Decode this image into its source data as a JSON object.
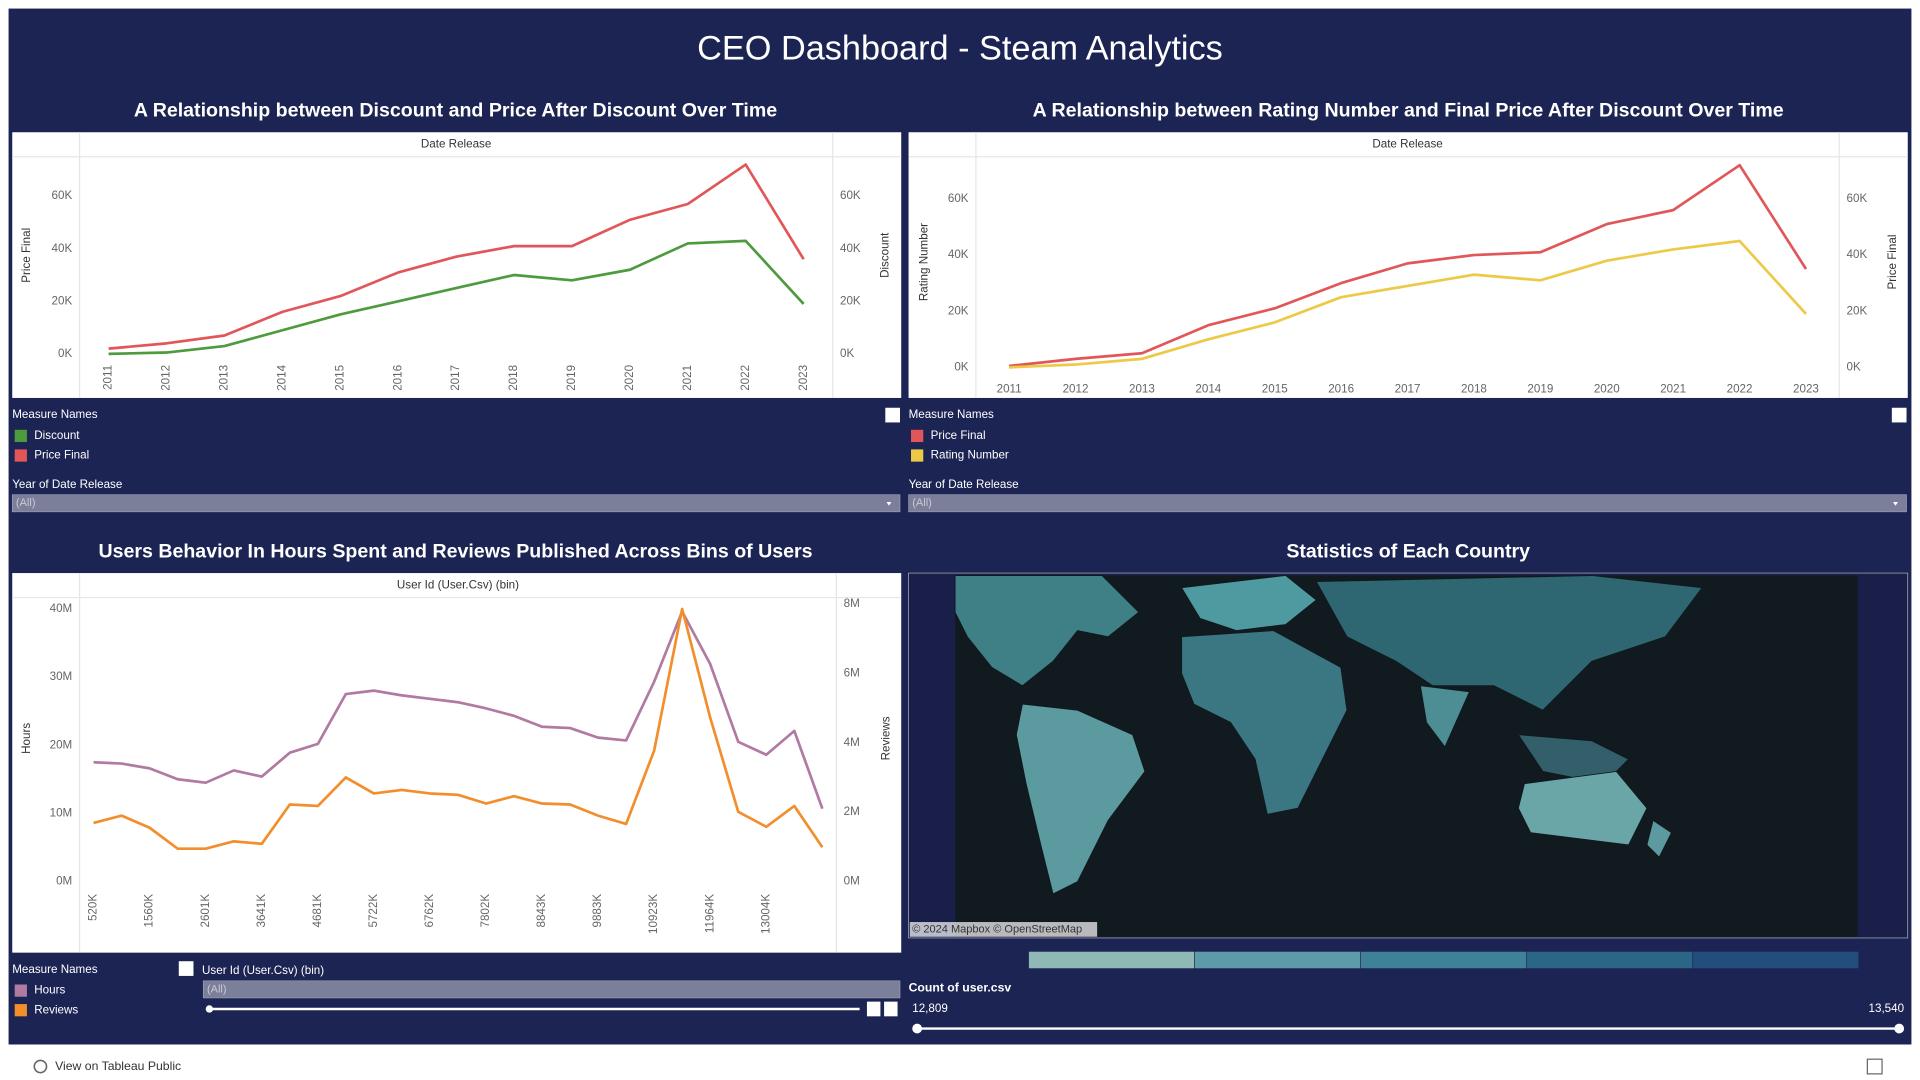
{
  "header": {
    "title": "CEO Dashboard - Steam Analytics"
  },
  "chart_data": [
    {
      "type": "line",
      "title": "A Relationship between Discount and Price After Discount Over Time",
      "x_label": "Date Release",
      "y_label": "Price Final",
      "y2_label": "Discount",
      "categories": [
        "2011",
        "2012",
        "2013",
        "2014",
        "2015",
        "2016",
        "2017",
        "2018",
        "2019",
        "2020",
        "2021",
        "2022",
        "2023"
      ],
      "series": [
        {
          "name": "Discount",
          "color": "#4e9a3e",
          "axis": "y2",
          "values": [
            0,
            500,
            3000,
            9000,
            15000,
            20000,
            25000,
            30000,
            28000,
            32000,
            42000,
            43000,
            19000
          ]
        },
        {
          "name": "Price Final",
          "color": "#e15759",
          "axis": "y",
          "values": [
            2000,
            4000,
            7000,
            16000,
            22000,
            31000,
            37000,
            41000,
            41000,
            51000,
            57000,
            72000,
            36000
          ]
        }
      ],
      "ylim": [
        0,
        75000
      ],
      "yticks": [
        {
          "value": 0,
          "label": "0K"
        },
        {
          "value": 20000,
          "label": "20K"
        },
        {
          "value": 40000,
          "label": "40K"
        },
        {
          "value": 60000,
          "label": "60K"
        }
      ],
      "y2lim": [
        0,
        75000
      ],
      "y2ticks": [
        {
          "value": 0,
          "label": "0K"
        },
        {
          "value": 20000,
          "label": "20K"
        },
        {
          "value": 40000,
          "label": "40K"
        },
        {
          "value": 60000,
          "label": "60K"
        }
      ],
      "legend_title": "Measure Names",
      "filter": {
        "label": "Year of Date Release",
        "value": "(All)"
      }
    },
    {
      "type": "line",
      "title": "A Relationship between Rating Number and Final Price After Discount Over Time",
      "x_label": "Date Release",
      "y_label": "Rating Number",
      "y2_label": "Price Final",
      "categories": [
        "2011",
        "2012",
        "2013",
        "2014",
        "2015",
        "2016",
        "2017",
        "2018",
        "2019",
        "2020",
        "2021",
        "2022",
        "2023"
      ],
      "series": [
        {
          "name": "Price Final",
          "color": "#e15759",
          "axis": "y2",
          "values": [
            500,
            3000,
            5000,
            15000,
            21000,
            30000,
            37000,
            40000,
            41000,
            51000,
            56000,
            72000,
            35000
          ]
        },
        {
          "name": "Rating Number",
          "color": "#edc948",
          "axis": "y",
          "values": [
            0,
            1000,
            3000,
            10000,
            16000,
            25000,
            29000,
            33000,
            31000,
            38000,
            42000,
            45000,
            19000
          ]
        }
      ],
      "ylim": [
        0,
        75000
      ],
      "yticks": [
        {
          "value": 0,
          "label": "0K"
        },
        {
          "value": 20000,
          "label": "20K"
        },
        {
          "value": 40000,
          "label": "40K"
        },
        {
          "value": 60000,
          "label": "60K"
        }
      ],
      "y2lim": [
        0,
        75000
      ],
      "y2ticks": [
        {
          "value": 0,
          "label": "0K"
        },
        {
          "value": 20000,
          "label": "20K"
        },
        {
          "value": 40000,
          "label": "40K"
        },
        {
          "value": 60000,
          "label": "60K"
        }
      ],
      "legend_title": "Measure Names",
      "filter": {
        "label": "Year of Date Release",
        "value": "(All)"
      }
    },
    {
      "type": "line",
      "title": "Users Behavior In Hours Spent and Reviews Published Across Bins of Users",
      "x_label": "User Id (User.Csv) (bin)",
      "y_label": "Hours",
      "y2_label": "Reviews",
      "categories": [
        "520K",
        null,
        "1560K",
        null,
        "2601K",
        null,
        "3641K",
        null,
        "4681K",
        null,
        "5722K",
        null,
        "6762K",
        null,
        "7802K",
        null,
        "8843K",
        null,
        "9883K",
        null,
        "10923K",
        null,
        "11964K",
        null,
        "13004K",
        null,
        null
      ],
      "series": [
        {
          "name": "Hours",
          "color": "#b07aa1",
          "axis": "y",
          "values": [
            17500000,
            17300000,
            16600000,
            15000000,
            14500000,
            16300000,
            15400000,
            18900000,
            20200000,
            27500000,
            28000000,
            27300000,
            26800000,
            26300000,
            25400000,
            24300000,
            22700000,
            22500000,
            21100000,
            20700000,
            29300000,
            39600000,
            31900000,
            20500000,
            18600000,
            22100000,
            10700000
          ]
        },
        {
          "name": "Reviews",
          "color": "#f28e2b",
          "axis": "y2",
          "values": [
            1690000,
            1900000,
            1550000,
            950000,
            950000,
            1160000,
            1090000,
            2220000,
            2180000,
            3000000,
            2540000,
            2640000,
            2540000,
            2500000,
            2250000,
            2460000,
            2250000,
            2220000,
            1900000,
            1660000,
            3770000,
            7850000,
            4720000,
            2010000,
            1580000,
            2180000,
            990000
          ]
        }
      ],
      "ylim": [
        0,
        42000000
      ],
      "yticks": [
        {
          "value": 0,
          "label": "0M"
        },
        {
          "value": 10000000,
          "label": "10M"
        },
        {
          "value": 20000000,
          "label": "20M"
        },
        {
          "value": 30000000,
          "label": "30M"
        },
        {
          "value": 40000000,
          "label": "40M"
        }
      ],
      "y2lim": [
        0,
        8250000
      ],
      "y2ticks": [
        {
          "value": 0,
          "label": "0M"
        },
        {
          "value": 2000000,
          "label": "2M"
        },
        {
          "value": 4000000,
          "label": "4M"
        },
        {
          "value": 6000000,
          "label": "6M"
        },
        {
          "value": 8000000,
          "label": "8M"
        }
      ],
      "legend_title": "Measure Names",
      "filter": {
        "label": "User Id (User.Csv) (bin)",
        "value": "(All)"
      }
    }
  ],
  "map": {
    "title": "Statistics of Each Country",
    "attribution": "© 2024 Mapbox © OpenStreetMap",
    "legend_title": "Count of user.csv",
    "legend_min": "12,809",
    "legend_max": "13,540",
    "colors": [
      "#8fb8b6",
      "#5e9ba8",
      "#3e8198",
      "#2b6687",
      "#214e7c"
    ]
  },
  "footer": {
    "link": "View on Tableau Public"
  }
}
